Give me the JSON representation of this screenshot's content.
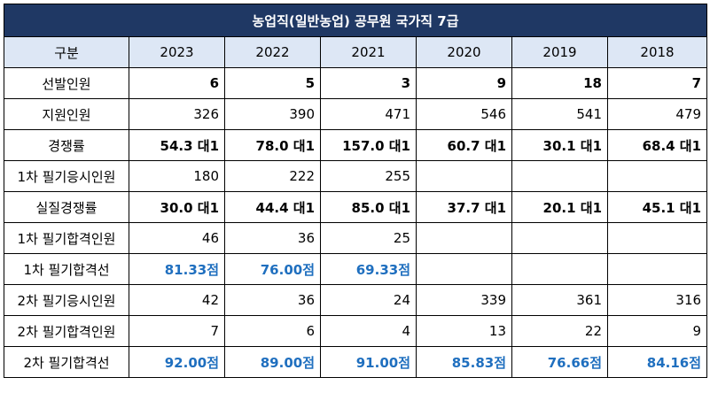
{
  "title": "농업직(일반농업)  공무원 국가직 7급",
  "header": [
    "구분",
    "2023",
    "2022",
    "2021",
    "2020",
    "2019",
    "2018"
  ],
  "rows": [
    {
      "label": "선발인원",
      "style": "bold",
      "cells": [
        "6",
        "5",
        "3",
        "9",
        "18",
        "7"
      ]
    },
    {
      "label": "지원인원",
      "style": "normal",
      "cells": [
        "326",
        "390",
        "471",
        "546",
        "541",
        "479"
      ]
    },
    {
      "label": "경쟁률",
      "style": "bold",
      "cells": [
        "54.3 대1",
        "78.0 대1",
        "157.0 대1",
        "60.7 대1",
        "30.1 대1",
        "68.4 대1"
      ]
    },
    {
      "label": "1차 필기응시인원",
      "style": "normal",
      "cells": [
        "180",
        "222",
        "255",
        "",
        "",
        ""
      ]
    },
    {
      "label": "실질경쟁률",
      "style": "bold",
      "cells": [
        "30.0 대1",
        "44.4 대1",
        "85.0 대1",
        "37.7 대1",
        "20.1 대1",
        "45.1 대1"
      ]
    },
    {
      "label": "1차 필기합격인원",
      "style": "normal",
      "cells": [
        "46",
        "36",
        "25",
        "",
        "",
        ""
      ]
    },
    {
      "label": "1차 필기합격선",
      "style": "blue",
      "cells": [
        "81.33점",
        "76.00점",
        "69.33점",
        "",
        "",
        ""
      ]
    },
    {
      "label": "2차 필기응시인원",
      "style": "normal",
      "cells": [
        "42",
        "36",
        "24",
        "339",
        "361",
        "316"
      ]
    },
    {
      "label": "2차 필기합격인원",
      "style": "normal",
      "cells": [
        "7",
        "6",
        "4",
        "13",
        "22",
        "9"
      ]
    },
    {
      "label": "2차 필기합격선",
      "style": "blue",
      "cells": [
        "92.00점",
        "89.00점",
        "91.00점",
        "85.83점",
        "76.66점",
        "84.16점"
      ]
    }
  ]
}
